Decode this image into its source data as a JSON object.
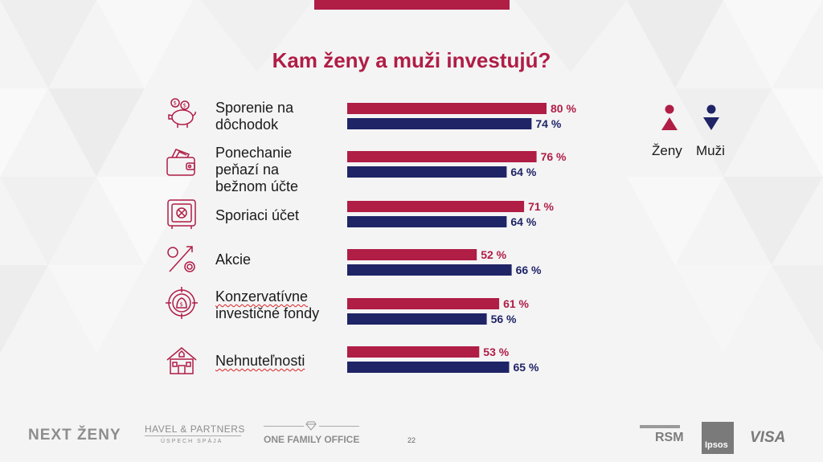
{
  "title": "Kam ženy a muži investujú?",
  "colors": {
    "women": "#b01d45",
    "men": "#1f2466",
    "accent": "#b01d45"
  },
  "categories": [
    {
      "lines": [
        "Sporenie na",
        "dôchodok"
      ],
      "icon": "piggy-bank-icon"
    },
    {
      "lines": [
        "Ponechanie",
        "peňazí na",
        "bežnom účte"
      ],
      "icon": "wallet-icon"
    },
    {
      "lines": [
        "Sporiaci účet"
      ],
      "icon": "safe-icon"
    },
    {
      "lines": [
        "Akcie"
      ],
      "icon": "percent-icon"
    },
    {
      "lines": [
        "Konzervatívne",
        "investičné fondy"
      ],
      "icon": "money-target-icon"
    },
    {
      "lines": [
        "Nehnuteľnosti"
      ],
      "icon": "house-icon"
    }
  ],
  "legend": {
    "women": "Ženy",
    "men": "Muži"
  },
  "chart_data": {
    "type": "bar",
    "orientation": "horizontal",
    "categories": [
      "Sporenie na dôchodok",
      "Ponechanie peňazí na bežnom účte",
      "Sporiaci účet",
      "Akcie",
      "Konzervatívne investičné fondy",
      "Nehnuteľnosti"
    ],
    "series": [
      {
        "name": "Ženy",
        "values": [
          80,
          76,
          71,
          52,
          61,
          53
        ],
        "labels": [
          "80 %",
          "76 %",
          "71 %",
          "52 %",
          "61 %",
          "53 %"
        ]
      },
      {
        "name": "Muži",
        "values": [
          74,
          64,
          64,
          66,
          56,
          65
        ],
        "labels": [
          "74 %",
          "64 %",
          "64 %",
          "66 %",
          "56 %",
          "65 %"
        ]
      }
    ],
    "legend_position": "right",
    "grid": false
  },
  "footer": {
    "page_number": "22",
    "logos": [
      "NEXT ŽENY",
      "HAVEL & PARTNERS",
      "ÚSPECH SPÁJA",
      "ONE FAMILY OFFICE",
      "RSM",
      "Ipsos",
      "VISA"
    ]
  }
}
